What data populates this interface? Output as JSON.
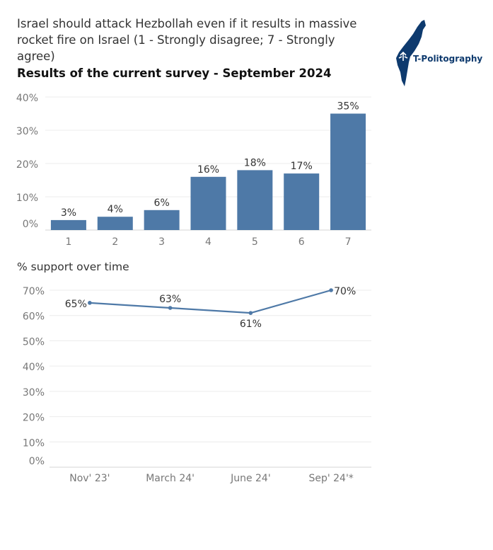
{
  "header": {
    "title": "Israel should attack Hezbollah even if it results in massive rocket fire on Israel (1 - Strongly disagree; 7 - Strongly agree)",
    "subtitle": "Results of the current survey - September 2024"
  },
  "logo": {
    "text": "T-Politography",
    "icon": "israel-map-icon"
  },
  "colors": {
    "bar": "#4e79a7",
    "line": "#4e79a7",
    "grid": "#ececec",
    "axis_text": "#777777"
  },
  "chart_data": [
    {
      "type": "bar",
      "title": "Results of the current survey - September 2024",
      "categories": [
        "1",
        "2",
        "3",
        "4",
        "5",
        "6",
        "7"
      ],
      "values": [
        3,
        4,
        6,
        16,
        18,
        17,
        35
      ],
      "value_labels": [
        "3%",
        "4%",
        "6%",
        "16%",
        "18%",
        "17%",
        "35%"
      ],
      "yticks": [
        "0%",
        "10%",
        "20%",
        "30%",
        "40%"
      ],
      "ylim": [
        0,
        40
      ],
      "grid": true
    },
    {
      "type": "line",
      "title": "% support over time",
      "categories": [
        "Nov' 23'",
        "March 24'",
        "June 24'",
        "Sep' 24'*"
      ],
      "values": [
        65,
        63,
        61,
        70
      ],
      "value_labels": [
        "65%",
        "63%",
        "61%",
        "70%"
      ],
      "yticks": [
        "0%",
        "10%",
        "20%",
        "30%",
        "40%",
        "50%",
        "60%",
        "70%"
      ],
      "ylim": [
        0,
        70
      ],
      "grid": true
    }
  ]
}
